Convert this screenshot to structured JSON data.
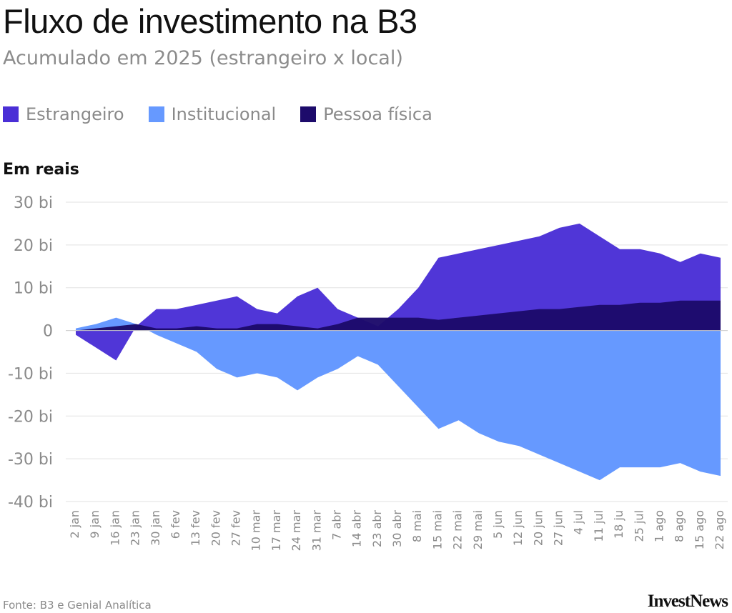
{
  "header": {
    "title": "Fluxo de investimento na B3",
    "subtitle": "Acumulado em 2025 (estrangeiro x local)"
  },
  "unit_label": "Em reais",
  "footer": {
    "source": "Fonte: B3 e Genial Analítica",
    "logo": "InvestNews"
  },
  "colors": {
    "estrangeiro": "#4a2fd6",
    "institucional": "#6699ff",
    "pessoa_fisica": "#1d0b6b",
    "grid": "#e2e2e2"
  },
  "legend": [
    {
      "label": "Estrangeiro",
      "color": "#4a2fd6"
    },
    {
      "label": "Institucional",
      "color": "#6699ff"
    },
    {
      "label": "Pessoa física",
      "color": "#1d0b6b"
    }
  ],
  "chart_data": {
    "type": "area",
    "x_tick_labels": [
      "2 jan",
      "9 jan",
      "16 jan",
      "23 jan",
      "30 jan",
      "6 fev",
      "13 fev",
      "20 fev",
      "27 fev",
      "10 mar",
      "17 mar",
      "24 mar",
      "31 mar",
      "7 abr",
      "14 abr",
      "23 abr",
      "30 abr",
      "8 mai",
      "15 mai",
      "22 mai",
      "29 mai",
      "5 jun",
      "12 jun",
      "20 jun",
      "27 jun",
      "4 jul",
      "11 jul",
      "18 ju",
      "25 jul",
      "1 ago",
      "8 ago",
      "15 ago",
      "22 ago"
    ],
    "y_tick_labels": [
      "30 bi",
      "20 bi",
      "10 bi",
      "0",
      "-10 bi",
      "-20 bi",
      "-30 bi",
      "-40 bi"
    ],
    "y_ticks": [
      30,
      20,
      10,
      0,
      -10,
      -20,
      -30,
      -40
    ],
    "ylim": [
      -40,
      30
    ],
    "x": [
      "2 jan",
      "9 jan",
      "16 jan",
      "23 jan",
      "30 jan",
      "6 fev",
      "13 fev",
      "20 fev",
      "27 fev",
      "10 mar",
      "17 mar",
      "24 mar",
      "31 mar",
      "7 abr",
      "14 abr",
      "23 abr",
      "30 abr",
      "8 mai",
      "15 mai",
      "22 mai",
      "29 mai",
      "5 jun",
      "12 jun",
      "20 jun",
      "27 jun",
      "4 jul",
      "11 jul",
      "18 ju",
      "25 jul",
      "1 ago",
      "8 ago",
      "15 ago",
      "22 ago"
    ],
    "series": [
      {
        "name": "Institucional",
        "key": "institucional",
        "values": [
          0.5,
          1.5,
          3,
          1.5,
          -1,
          -3,
          -5,
          -9,
          -11,
          -10,
          -11,
          -14,
          -11,
          -9,
          -6,
          -8,
          -13,
          -18,
          -23,
          -21,
          -24,
          -26,
          -27,
          -29,
          -31,
          -33,
          -35,
          -32,
          -32,
          -32,
          -31,
          -33,
          -34
        ]
      },
      {
        "name": "Estrangeiro",
        "key": "estrangeiro",
        "values": [
          -1,
          -4,
          -7,
          1,
          5,
          5,
          6,
          7,
          8,
          5,
          4,
          8,
          10,
          5,
          3,
          1,
          5,
          10,
          17,
          18,
          19,
          20,
          21,
          22,
          24,
          25,
          22,
          19,
          19,
          18,
          16,
          18,
          17
        ]
      },
      {
        "name": "Pessoa física",
        "key": "pessoa_fisica",
        "values": [
          0,
          0.5,
          1,
          1.5,
          0.5,
          0.5,
          1,
          0.5,
          0.5,
          1.5,
          1.5,
          1,
          0.5,
          1.5,
          3,
          3,
          3,
          3,
          2.5,
          3,
          3.5,
          4,
          4.5,
          5,
          5,
          5.5,
          6,
          6,
          6.5,
          6.5,
          7,
          7,
          7
        ]
      }
    ]
  }
}
